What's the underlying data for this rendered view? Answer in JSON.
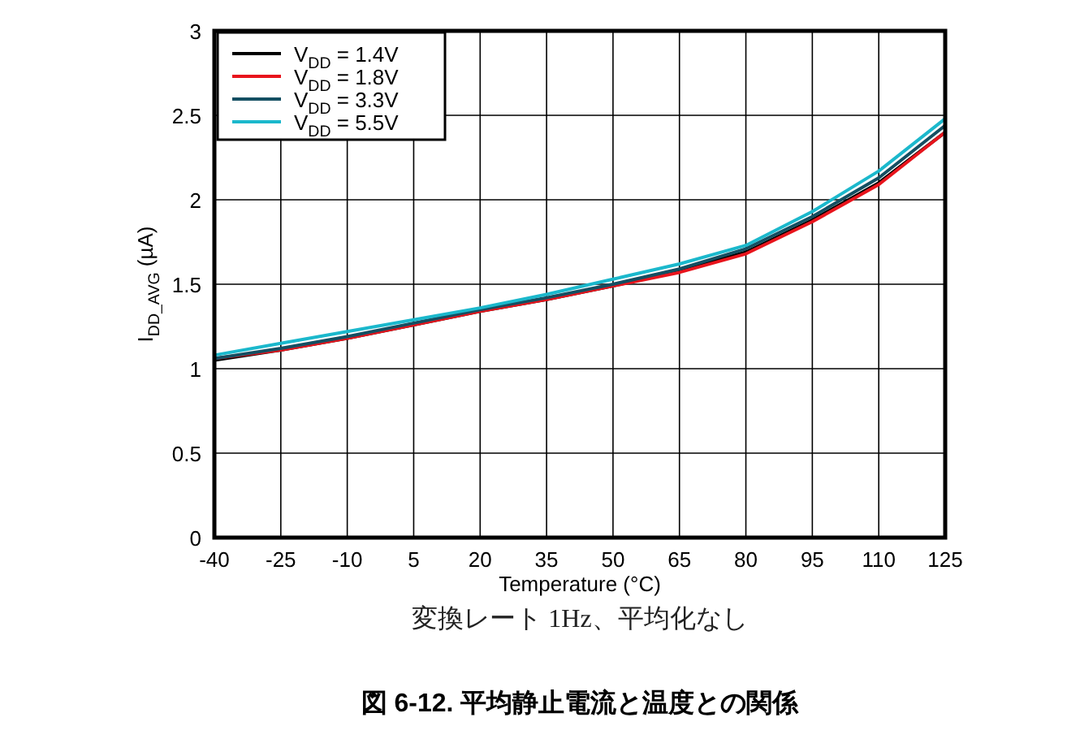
{
  "chart_data": {
    "type": "line",
    "title": "図 6-12. 平均静止電流と温度との関係",
    "subtitle": "変換レート 1Hz、平均化なし",
    "xlabel": "Temperature (°C)",
    "ylabel": "I$_{DD_AVG}$ (µA)",
    "x": [
      -40,
      -25,
      -10,
      5,
      20,
      35,
      50,
      65,
      80,
      95,
      110,
      125
    ],
    "series": [
      {
        "name": "V$_{DD}$ = 1.4V",
        "color": "#000000",
        "values": [
          1.05,
          1.11,
          1.18,
          1.26,
          1.34,
          1.41,
          1.49,
          1.58,
          1.69,
          1.88,
          2.1,
          2.4
        ]
      },
      {
        "name": "V$_{DD}$ = 1.8V",
        "color": "#e8141c",
        "values": [
          1.06,
          1.11,
          1.18,
          1.26,
          1.34,
          1.41,
          1.49,
          1.57,
          1.68,
          1.87,
          2.09,
          2.4
        ]
      },
      {
        "name": "V$_{DD}$ = 3.3V",
        "color": "#144f62",
        "values": [
          1.06,
          1.12,
          1.19,
          1.27,
          1.35,
          1.42,
          1.5,
          1.59,
          1.71,
          1.9,
          2.13,
          2.44
        ]
      },
      {
        "name": "V$_{DD}$ = 5.5V",
        "color": "#1bb8cc",
        "values": [
          1.08,
          1.15,
          1.22,
          1.29,
          1.36,
          1.44,
          1.53,
          1.62,
          1.73,
          1.93,
          2.17,
          2.48
        ]
      }
    ],
    "xlim": [
      -40,
      125
    ],
    "xticks": [
      -40,
      -25,
      -10,
      5,
      20,
      35,
      50,
      65,
      80,
      95,
      110,
      125
    ],
    "ylim": [
      0,
      3
    ],
    "yticks": [
      0,
      0.5,
      1,
      1.5,
      2,
      2.5,
      3
    ],
    "grid": true,
    "legend": "top left",
    "marker": "none",
    "line_style": "solid"
  }
}
